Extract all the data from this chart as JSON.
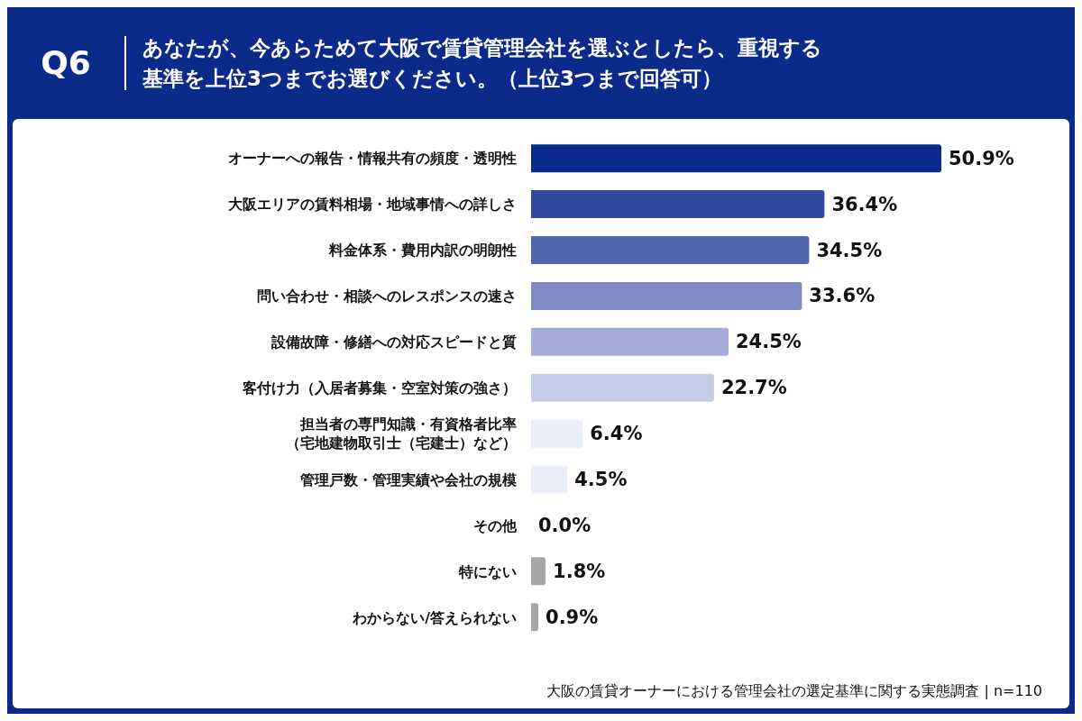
{
  "chart_data": {
    "type": "bar",
    "orientation": "horizontal",
    "subtitle": "Q6",
    "title": "あなたが、今あらためて大阪で賃貸管理会社を選ぶとしたら、重視する基準を上位3つまでお選びください。（上位3つまで回答可）",
    "categories": [
      "オーナーへの報告・情報共有の頻度・透明性",
      "大阪エリアの賃料相場・地域事情への詳しさ",
      "料金体系・費用内訳の明朗性",
      "問い合わせ・相談へのレスポンスの速さ",
      "設備故障・修繕への対応スピードと質",
      "客付け力（入居者募集・空室対策の強さ）",
      "担当者の専門知識・有資格者比率（宅地建物取引士（宅建士）など）",
      "管理戸数・管理実績や会社の規模",
      "その他",
      "特にない",
      "わからない/答えられない"
    ],
    "values": [
      50.9,
      36.4,
      34.5,
      33.6,
      24.5,
      22.7,
      6.4,
      4.5,
      0.0,
      1.8,
      0.9
    ],
    "value_labels": [
      "50.9%",
      "36.4%",
      "34.5%",
      "33.6%",
      "24.5%",
      "22.7%",
      "6.4%",
      "4.5%",
      "0.0%",
      "1.8%",
      "0.9%"
    ],
    "colors": [
      "#0a2a8c",
      "#2f4a9c",
      "#5367b0",
      "#7f8bc5",
      "#a4acd7",
      "#c6cde6",
      "#e9eef9",
      "#e9eef9",
      "#e9eef9",
      "#a6a6a6",
      "#a6a6a6"
    ],
    "tick_labels": "y",
    "annotations": [
      "大阪の賃貸オーナーにおける管理会社の選定基準に関する実態調査 | n=110"
    ]
  }
}
